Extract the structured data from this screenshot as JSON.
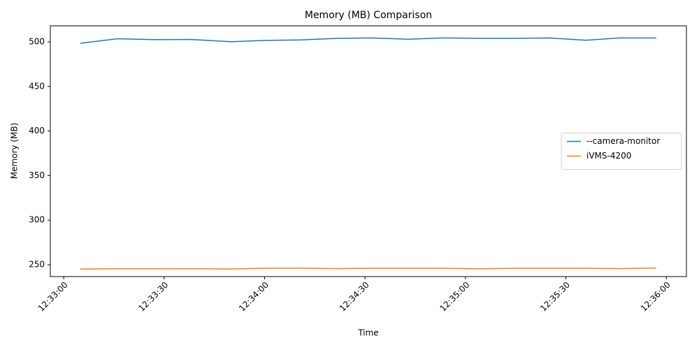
{
  "chart_data": {
    "type": "line",
    "title": "Memory (MB) Comparison",
    "x_label": "Time",
    "y_label": "Memory (MB)",
    "x": [
      "12:33:05",
      "12:33:16",
      "12:33:27",
      "12:33:38",
      "12:33:50",
      "12:34:00",
      "12:34:11",
      "12:34:22",
      "12:34:32",
      "12:34:43",
      "12:34:53",
      "12:35:04",
      "12:35:15",
      "12:35:25",
      "12:35:36",
      "12:35:46",
      "12:35:57"
    ],
    "series": [
      {
        "name": "--camera-monitor",
        "color": "#1f77b4",
        "values": [
          498.5,
          503.5,
          502.5,
          502.7,
          500.2,
          501.6,
          502.2,
          504,
          504.4,
          503,
          504.4,
          504,
          504,
          504.4,
          501.8,
          504.4,
          504.4
        ]
      },
      {
        "name": "iVMS-4200",
        "color": "#ff7f0e",
        "values": [
          245.1,
          245.5,
          245.4,
          245.5,
          245.2,
          246,
          246.1,
          245.6,
          246,
          246,
          246,
          245.4,
          246,
          246,
          246,
          245.6,
          246.3
        ]
      }
    ],
    "xlim": [
      "12:32:56",
      "12:36:06"
    ],
    "xticks": [
      "12:33:00",
      "12:33:30",
      "12:34:00",
      "12:34:30",
      "12:35:00",
      "12:35:30",
      "12:36:00"
    ],
    "ylim": [
      236.7,
      518
    ],
    "yticks": [
      250,
      300,
      350,
      400,
      450,
      500
    ],
    "legend": "center right"
  }
}
